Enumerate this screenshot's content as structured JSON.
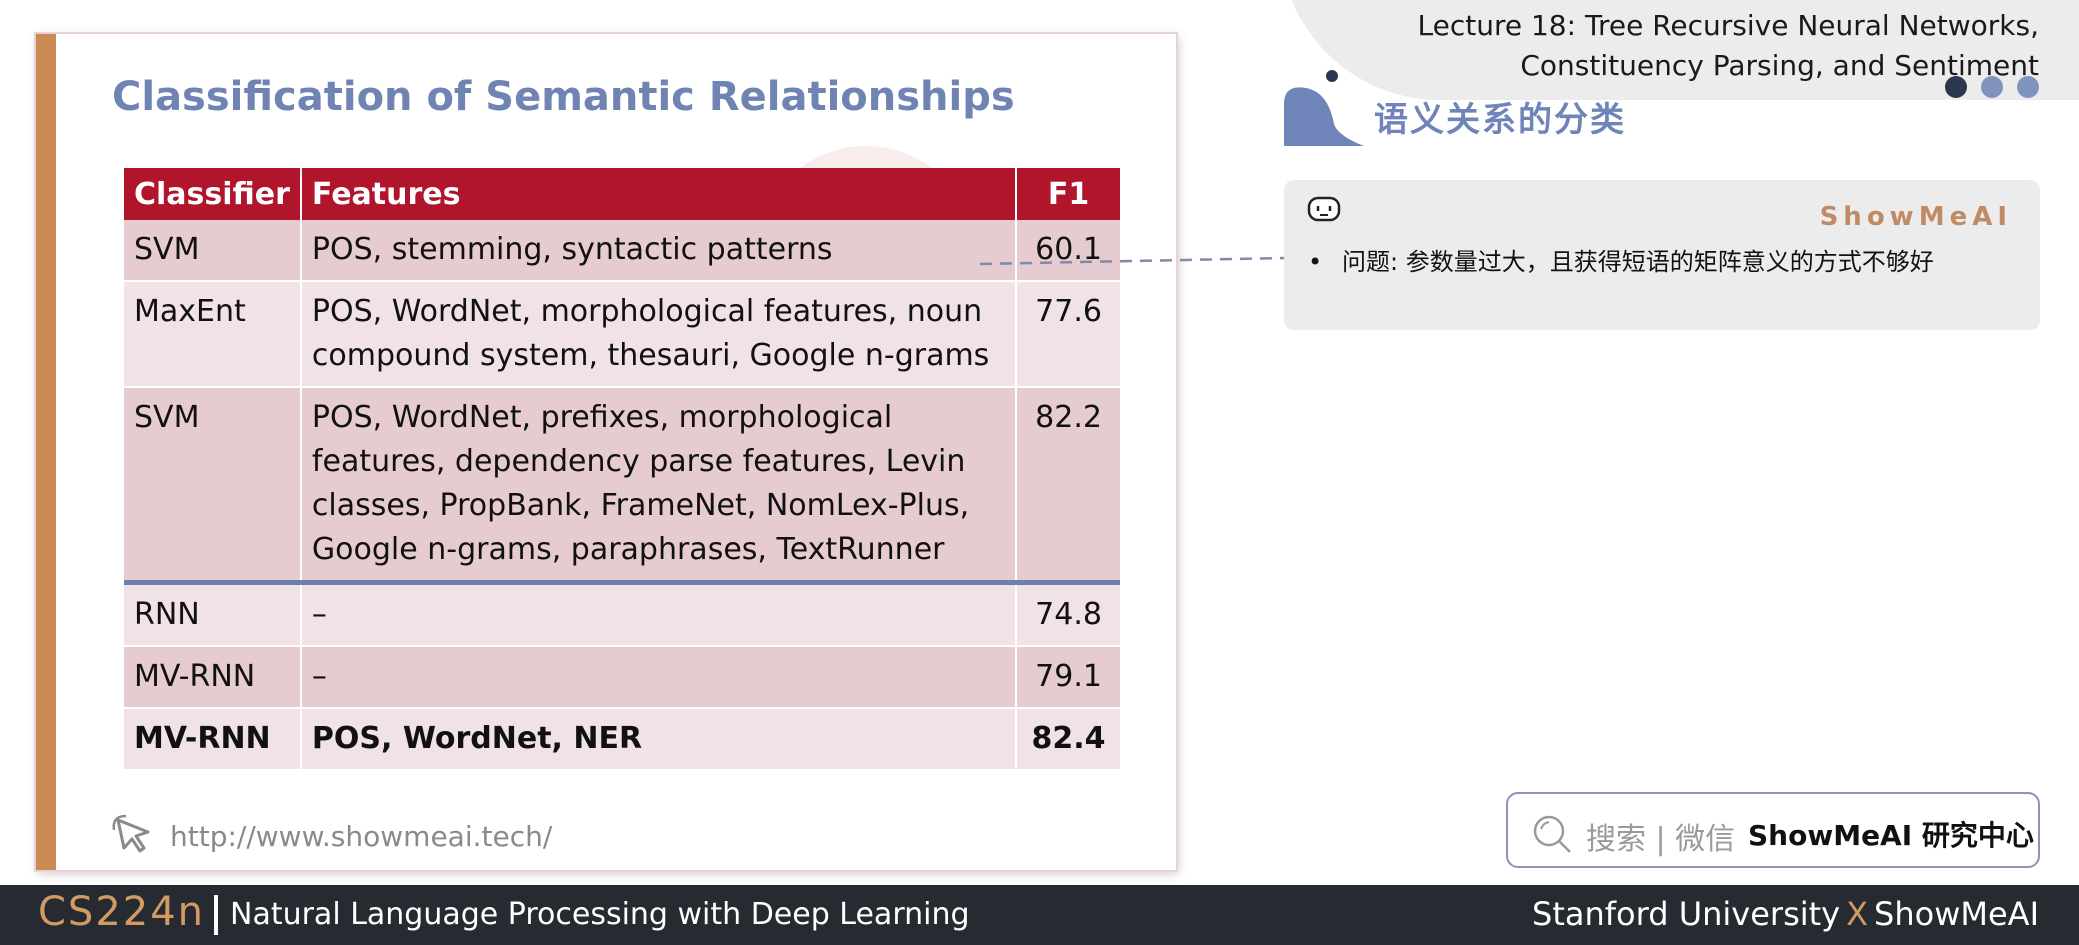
{
  "header": {
    "lecture_line1": "Lecture 18: Tree Recursive Neural Networks,",
    "lecture_line2": "Constituency Parsing, and Sentiment",
    "section_title": "语义关系的分类"
  },
  "slide": {
    "title": "Classification of Semantic Relationships",
    "url": "http://www.showmeai.tech/",
    "table": {
      "headers": [
        "Classifier",
        "Features",
        "F1"
      ],
      "rows": [
        {
          "classifier": "SVM",
          "features": "POS, stemming, syntactic patterns",
          "f1": "60.1"
        },
        {
          "classifier": "MaxEnt",
          "features": "POS, WordNet, morphological features, noun compound system, thesauri, Google n-grams",
          "f1": "77.6"
        },
        {
          "classifier": "SVM",
          "features": "POS, WordNet, prefixes, morphological features, dependency parse features, Levin classes, PropBank, FrameNet, NomLex-Plus, Google n-grams, paraphrases, TextRunner",
          "f1": "82.2"
        },
        {
          "classifier": "RNN",
          "features": "–",
          "f1": "74.8"
        },
        {
          "classifier": "MV-RNN",
          "features": "–",
          "f1": "79.1"
        },
        {
          "classifier": "MV-RNN",
          "features": "POS, WordNet, NER",
          "f1": "82.4"
        }
      ]
    }
  },
  "note": {
    "brand": "ShowMeAI",
    "bullet": "•",
    "text": "问题: 参数量过大，且获得短语的矩阵意义的方式不够好"
  },
  "search": {
    "label": "搜索 | 微信",
    "brand": "ShowMeAI 研究中心"
  },
  "footer": {
    "course_code": "CS224n",
    "course_name": "Natural Language Processing with Deep Learning",
    "org_left": "Stanford University",
    "org_x": "X",
    "org_right": "ShowMeAI"
  },
  "colors": {
    "accent_orange": "#c98b52",
    "table_header_red": "#b0152c",
    "title_blue": "#6f84b2",
    "footer_dark": "#262b31"
  }
}
